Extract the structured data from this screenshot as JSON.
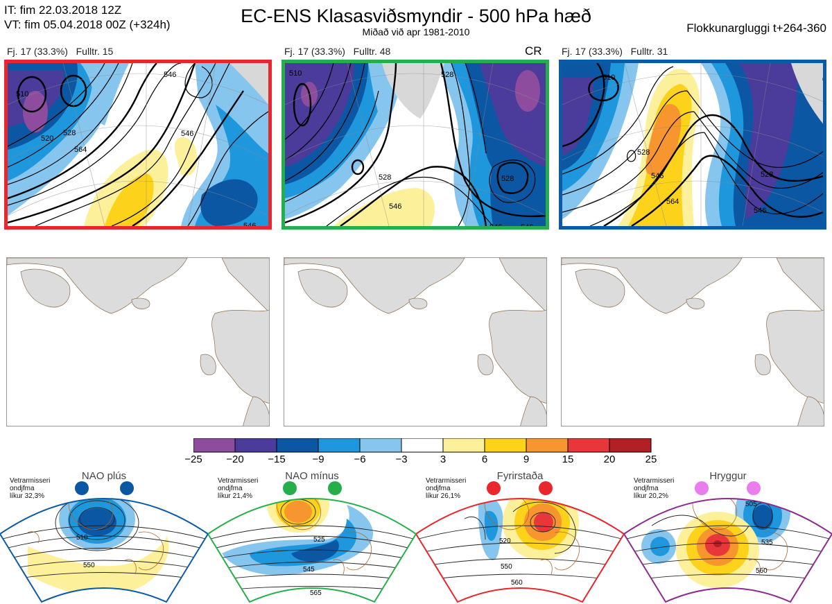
{
  "header": {
    "it_line": "IT: fim 22.03.2018 12Z",
    "vt_line": "VT: fim 05.04.2018 00Z  (+324h)",
    "title": "EC-ENS Klasasviðsmyndir - 500 hPa hæð",
    "subtitle": "Miðað við apr 1981-2010",
    "window": "Flokkunargluggi t+264-360"
  },
  "clusters": [
    {
      "label": "Fj. 17 (33.3%)",
      "member": "Fulltr. 15",
      "tag": "",
      "border_color": "#e8262b",
      "contours": [
        "510",
        "520",
        "528",
        "546",
        "564",
        "546",
        "546"
      ]
    },
    {
      "label": "Fj. 17 (33.3%)",
      "member": "Fulltr. 48",
      "tag": "CR",
      "border_color": "#25ae4a",
      "contours": [
        "510",
        "528",
        "546",
        "528",
        "528",
        "546",
        "546"
      ]
    },
    {
      "label": "Fj. 17 (33.3%)",
      "member": "Fulltr. 31",
      "tag": "",
      "border_color": "#0b5aa6",
      "contours": [
        "510",
        "528",
        "546",
        "528",
        "546",
        "564"
      ]
    }
  ],
  "colorbar": {
    "colors": [
      "#8e4c9e",
      "#4b3b9a",
      "#0b57a4",
      "#1e97dc",
      "#86c6ee",
      "#ffffff",
      "#fdf09a",
      "#fdd21b",
      "#f7952e",
      "#e8373a",
      "#b21f25"
    ],
    "ticks": [
      "−25",
      "−20",
      "−15",
      "−9",
      "−6",
      "−3",
      "3",
      "6",
      "9",
      "15",
      "20",
      "25"
    ]
  },
  "regimes": [
    {
      "name": "NAO plús",
      "info": [
        "Vetrarmisseri",
        "ondjfma",
        "líkur 32,3%"
      ],
      "dot_color": "#0b57a4",
      "border_color": "#0b5aa6",
      "contours": [
        "510",
        "550"
      ]
    },
    {
      "name": "NAO mínus",
      "info": [
        "Vetrarmisseri",
        "ondjfma",
        "líkur 21,4%"
      ],
      "dot_color": "#25ae4a",
      "border_color": "#25ae4a",
      "contours": [
        "525",
        "545",
        "565"
      ]
    },
    {
      "name": "Fyrirstaða",
      "info": [
        "Vetrarmisseri",
        "ondjfma",
        "líkur 26,1%"
      ],
      "dot_color": "#e8262b",
      "border_color": "#e8262b",
      "contours": [
        "520",
        "550",
        "560"
      ]
    },
    {
      "name": "Hryggur",
      "info": [
        "Vetrarmisseri",
        "ondjfma",
        "líkur 20,2%"
      ],
      "dot_color": "#ea7ded",
      "border_color": "#8e2a8f",
      "contours": [
        "505",
        "535",
        "560"
      ]
    }
  ]
}
